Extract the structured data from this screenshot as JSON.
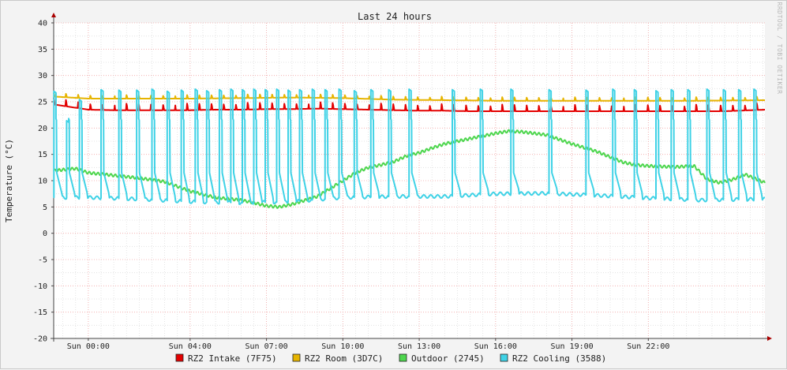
{
  "chart_data": {
    "type": "line",
    "title": "Last 24 hours",
    "ylabel": "Temperature (°C)",
    "xlabel": "",
    "watermark": "RRDTOOL / TOBI OETIKER",
    "ylim": [
      -20,
      40
    ],
    "yticks": [
      40,
      35,
      30,
      25,
      20,
      15,
      10,
      5,
      0,
      -5,
      -10,
      -15,
      -20
    ],
    "x_range_hours": [
      -1.36,
      26.58
    ],
    "xticks": [
      {
        "h": 0,
        "label": "Sun 00:00"
      },
      {
        "h": 4,
        "label": "Sun 04:00"
      },
      {
        "h": 7,
        "label": "Sun 07:00"
      },
      {
        "h": 10,
        "label": "Sun 10:00"
      },
      {
        "h": 13,
        "label": "Sun 13:00"
      },
      {
        "h": 16,
        "label": "Sun 16:00"
      },
      {
        "h": 19,
        "label": "Sun 19:00"
      },
      {
        "h": 22,
        "label": "Sun 22:00"
      }
    ],
    "grid": true,
    "legend_position": "bottom",
    "series": [
      {
        "name": "RZ2 Intake (7F75)",
        "color": "#e30000",
        "points": [
          [
            -1.36,
            24.5
          ],
          [
            0.0,
            23.5
          ],
          [
            1.0,
            23.4
          ],
          [
            2.0,
            23.4
          ],
          [
            3.0,
            23.4
          ],
          [
            4.0,
            23.4
          ],
          [
            5.0,
            23.5
          ],
          [
            6.0,
            23.5
          ],
          [
            7.0,
            23.6
          ],
          [
            8.0,
            23.6
          ],
          [
            9.0,
            23.7
          ],
          [
            10.0,
            23.6
          ],
          [
            11.0,
            23.5
          ],
          [
            12.0,
            23.4
          ],
          [
            13.0,
            23.3
          ],
          [
            14.0,
            23.3
          ],
          [
            15.0,
            23.2
          ],
          [
            16.0,
            23.2
          ],
          [
            17.0,
            23.2
          ],
          [
            18.0,
            23.2
          ],
          [
            19.0,
            23.2
          ],
          [
            20.0,
            23.2
          ],
          [
            21.0,
            23.2
          ],
          [
            22.0,
            23.2
          ],
          [
            23.0,
            23.2
          ],
          [
            24.0,
            23.2
          ],
          [
            25.0,
            23.2
          ],
          [
            26.58,
            23.5
          ]
        ]
      },
      {
        "name": "RZ2 Room (3D7C)",
        "color": "#e6b400",
        "points": [
          [
            -1.36,
            26.0
          ],
          [
            0.0,
            25.6
          ],
          [
            2.0,
            25.6
          ],
          [
            4.0,
            25.6
          ],
          [
            6.0,
            25.7
          ],
          [
            8.0,
            25.8
          ],
          [
            10.0,
            25.7
          ],
          [
            12.0,
            25.4
          ],
          [
            14.0,
            25.3
          ],
          [
            16.0,
            25.2
          ],
          [
            18.0,
            25.2
          ],
          [
            20.0,
            25.2
          ],
          [
            22.0,
            25.2
          ],
          [
            24.0,
            25.2
          ],
          [
            26.58,
            25.3
          ]
        ]
      },
      {
        "name": "Outdoor (2745)",
        "color": "#4ed64e",
        "points": [
          [
            -1.36,
            11.9
          ],
          [
            -0.5,
            12.3
          ],
          [
            0.0,
            11.5
          ],
          [
            1.0,
            11.0
          ],
          [
            2.0,
            10.5
          ],
          [
            3.0,
            9.8
          ],
          [
            4.0,
            8.0
          ],
          [
            5.0,
            6.8
          ],
          [
            6.0,
            6.3
          ],
          [
            6.5,
            5.8
          ],
          [
            7.0,
            5.2
          ],
          [
            7.5,
            5.0
          ],
          [
            8.0,
            5.5
          ],
          [
            9.0,
            7.0
          ],
          [
            9.5,
            8.5
          ],
          [
            10.0,
            10.0
          ],
          [
            10.5,
            11.5
          ],
          [
            11.0,
            12.5
          ],
          [
            11.5,
            13.0
          ],
          [
            12.0,
            13.6
          ],
          [
            12.5,
            14.7
          ],
          [
            13.0,
            15.3
          ],
          [
            13.5,
            16.2
          ],
          [
            14.0,
            17.0
          ],
          [
            15.0,
            18.0
          ],
          [
            16.0,
            19.0
          ],
          [
            16.5,
            19.4
          ],
          [
            17.0,
            19.3
          ],
          [
            18.0,
            18.7
          ],
          [
            19.0,
            17.0
          ],
          [
            20.0,
            15.5
          ],
          [
            20.5,
            14.5
          ],
          [
            21.0,
            13.5
          ],
          [
            21.5,
            13.0
          ],
          [
            22.0,
            12.8
          ],
          [
            23.0,
            12.6
          ],
          [
            23.8,
            12.8
          ],
          [
            24.3,
            10.3
          ],
          [
            24.8,
            9.6
          ],
          [
            25.3,
            10.2
          ],
          [
            25.8,
            11.2
          ],
          [
            26.58,
            9.6
          ]
        ]
      },
      {
        "name": "RZ2 Cooling (3588)",
        "color": "#3fd2e6",
        "baseline": [
          [
            -1.36,
            6.8
          ],
          [
            0.0,
            6.8
          ],
          [
            2.0,
            6.5
          ],
          [
            4.0,
            6.0
          ],
          [
            6.0,
            5.8
          ],
          [
            8.0,
            6.0
          ],
          [
            10.0,
            6.8
          ],
          [
            12.0,
            7.0
          ],
          [
            14.0,
            7.0
          ],
          [
            16.0,
            7.5
          ],
          [
            18.0,
            7.6
          ],
          [
            20.0,
            7.2
          ],
          [
            22.0,
            6.7
          ],
          [
            24.0,
            6.3
          ],
          [
            26.58,
            6.5
          ]
        ],
        "spikes_h": [
          -1.35,
          -0.85,
          -0.35,
          0.5,
          1.2,
          1.9,
          2.5,
          3.1,
          3.65,
          4.2,
          4.65,
          5.15,
          5.6,
          6.05,
          6.5,
          6.95,
          7.4,
          7.85,
          8.3,
          8.8,
          9.3,
          9.85,
          10.45,
          11.1,
          11.8,
          12.6,
          14.3,
          15.4,
          16.6,
          18.1,
          19.55,
          20.6,
          21.45,
          22.3,
          22.9,
          23.55,
          24.3,
          24.95,
          25.55,
          26.15
        ],
        "spike_peak": [
          27.0,
          21.4,
          25.4,
          27.3,
          27.2,
          27.2,
          27.4,
          27.0,
          27.2,
          27.4,
          27.1,
          27.3,
          27.4,
          27.3,
          27.4,
          27.3,
          27.4,
          27.2,
          27.3,
          27.4,
          27.3,
          27.4,
          27.1,
          27.3,
          27.3,
          27.4,
          27.3,
          27.4,
          27.4,
          27.3,
          27.2,
          27.4,
          27.3,
          27.1,
          27.3,
          27.3,
          27.4,
          27.3,
          27.3,
          27.4
        ]
      }
    ]
  }
}
